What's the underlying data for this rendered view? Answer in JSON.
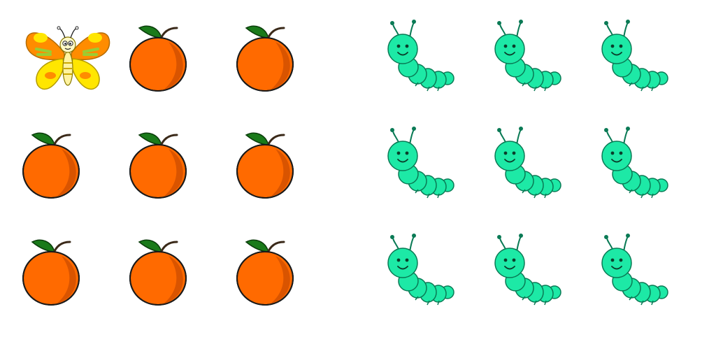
{
  "scene": {
    "left_grid": {
      "rows": 3,
      "cols": 3,
      "items": [
        {
          "kind": "butterfly"
        },
        {
          "kind": "orange"
        },
        {
          "kind": "orange"
        },
        {
          "kind": "orange"
        },
        {
          "kind": "orange"
        },
        {
          "kind": "orange"
        },
        {
          "kind": "orange"
        },
        {
          "kind": "orange"
        },
        {
          "kind": "orange"
        }
      ]
    },
    "right_grid": {
      "rows": 3,
      "cols": 3,
      "items": [
        {
          "kind": "caterpillar"
        },
        {
          "kind": "caterpillar"
        },
        {
          "kind": "caterpillar"
        },
        {
          "kind": "caterpillar"
        },
        {
          "kind": "caterpillar"
        },
        {
          "kind": "caterpillar"
        },
        {
          "kind": "caterpillar"
        },
        {
          "kind": "caterpillar"
        },
        {
          "kind": "caterpillar"
        }
      ]
    },
    "colors": {
      "orange_fill": "#ff6a00",
      "orange_shade": "#d95400",
      "leaf": "#1a7a1a",
      "caterpillar": "#1de9a6",
      "caterpillar_outline": "#0a7a55",
      "butterfly_wing_outer": "#ff8c00",
      "butterfly_wing_inner": "#ffe600",
      "butterfly_accent": "#9acd32"
    }
  }
}
